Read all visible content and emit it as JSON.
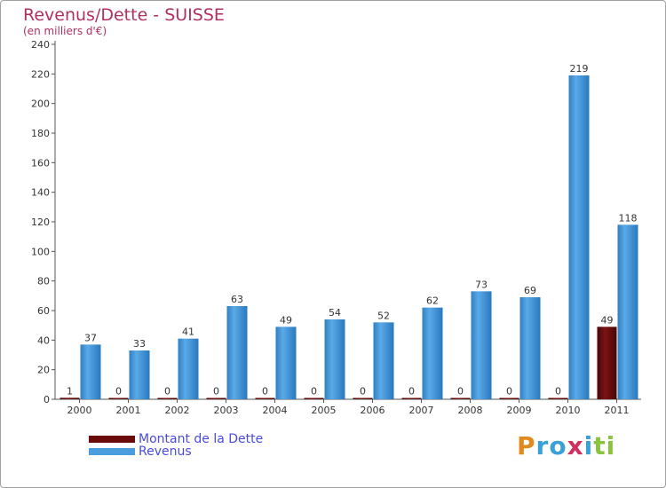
{
  "title": "Revenus/Dette - SUISSE",
  "subtitle": "(en milliers d'€)",
  "colors": {
    "title": "#b03060",
    "debt": "#6a0a0a",
    "revenue": "#4a9ede",
    "legend_text": "#4a4ae0"
  },
  "legend": {
    "debt_label": "Montant de la Dette",
    "revenue_label": "Revenus"
  },
  "logo": {
    "letters": [
      "P",
      "r",
      "o",
      "x",
      "i",
      "t",
      "i"
    ],
    "colors": [
      "#e08a20",
      "#3aa0d8",
      "#3aa0d8",
      "#d03060",
      "#3aa0d8",
      "#8ac43c",
      "#8ac43c"
    ]
  },
  "chart_data": {
    "type": "bar",
    "title": "Revenus/Dette - SUISSE",
    "ylabel": "(en milliers d'€)",
    "categories": [
      "2000",
      "2001",
      "2002",
      "2003",
      "2004",
      "2005",
      "2006",
      "2007",
      "2008",
      "2009",
      "2010",
      "2011"
    ],
    "series": [
      {
        "name": "Montant de la Dette",
        "values": [
          1,
          0,
          0,
          0,
          0,
          0,
          0,
          0,
          0,
          0,
          0,
          49
        ]
      },
      {
        "name": "Revenus",
        "values": [
          37,
          33,
          41,
          63,
          49,
          54,
          52,
          62,
          73,
          69,
          219,
          118
        ]
      }
    ],
    "ylim": [
      0,
      240
    ],
    "yticks": [
      0,
      20,
      40,
      60,
      80,
      100,
      120,
      140,
      160,
      180,
      200,
      220,
      240
    ],
    "grid": false,
    "legend": "bottom-left"
  }
}
